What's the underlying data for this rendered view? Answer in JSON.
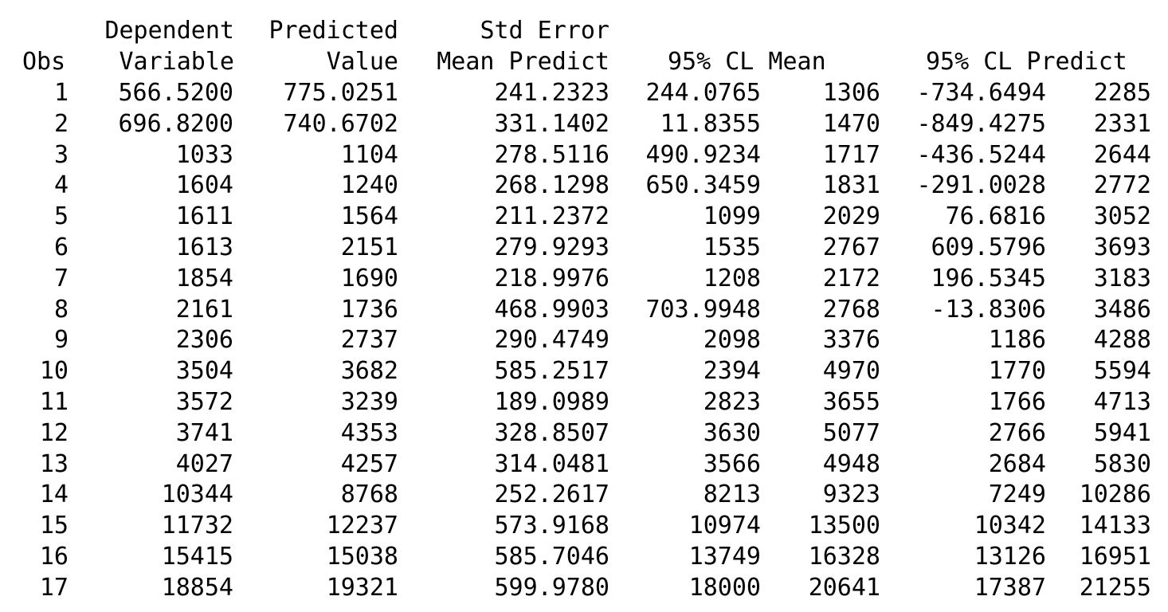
{
  "header": {
    "row1": {
      "dependent": "Dependent",
      "predicted": "Predicted",
      "std_error": "Std Error"
    },
    "row2": {
      "obs": "Obs",
      "variable": "Variable",
      "value": "Value",
      "mean_predict": "Mean Predict",
      "cl_mean": "95% CL Mean",
      "cl_predict": "95% CL Predict"
    }
  },
  "rows": [
    [
      "1",
      "566.5200",
      "775.0251",
      "241.2323",
      "244.0765",
      "1306",
      "-734.6494",
      "2285"
    ],
    [
      "2",
      "696.8200",
      "740.6702",
      "331.1402",
      "11.8355",
      "1470",
      "-849.4275",
      "2331"
    ],
    [
      "3",
      "1033",
      "1104",
      "278.5116",
      "490.9234",
      "1717",
      "-436.5244",
      "2644"
    ],
    [
      "4",
      "1604",
      "1240",
      "268.1298",
      "650.3459",
      "1831",
      "-291.0028",
      "2772"
    ],
    [
      "5",
      "1611",
      "1564",
      "211.2372",
      "1099",
      "2029",
      "76.6816",
      "3052"
    ],
    [
      "6",
      "1613",
      "2151",
      "279.9293",
      "1535",
      "2767",
      "609.5796",
      "3693"
    ],
    [
      "7",
      "1854",
      "1690",
      "218.9976",
      "1208",
      "2172",
      "196.5345",
      "3183"
    ],
    [
      "8",
      "2161",
      "1736",
      "468.9903",
      "703.9948",
      "2768",
      "-13.8306",
      "3486"
    ],
    [
      "9",
      "2306",
      "2737",
      "290.4749",
      "2098",
      "3376",
      "1186",
      "4288"
    ],
    [
      "10",
      "3504",
      "3682",
      "585.2517",
      "2394",
      "4970",
      "1770",
      "5594"
    ],
    [
      "11",
      "3572",
      "3239",
      "189.0989",
      "2823",
      "3655",
      "1766",
      "4713"
    ],
    [
      "12",
      "3741",
      "4353",
      "328.8507",
      "3630",
      "5077",
      "2766",
      "5941"
    ],
    [
      "13",
      "4027",
      "4257",
      "314.0481",
      "3566",
      "4948",
      "2684",
      "5830"
    ],
    [
      "14",
      "10344",
      "8768",
      "252.2617",
      "8213",
      "9323",
      "7249",
      "10286"
    ],
    [
      "15",
      "11732",
      "12237",
      "573.9168",
      "10974",
      "13500",
      "10342",
      "14133"
    ],
    [
      "16",
      "15415",
      "15038",
      "585.7046",
      "13749",
      "16328",
      "13126",
      "16951"
    ],
    [
      "17",
      "18854",
      "19321",
      "599.9780",
      "18000",
      "20641",
      "17387",
      "21255"
    ]
  ]
}
